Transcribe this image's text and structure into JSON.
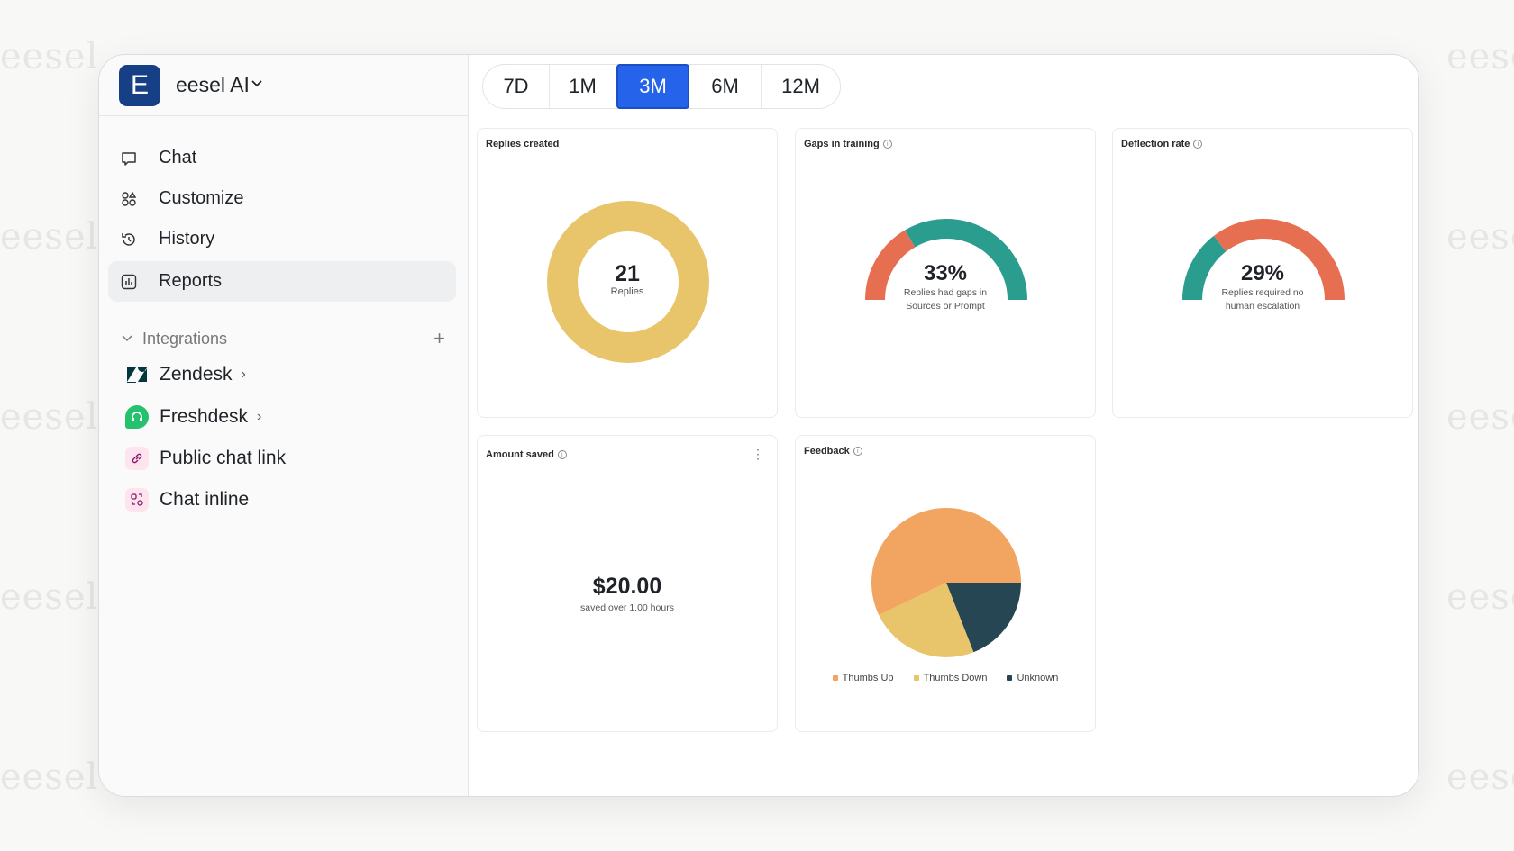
{
  "watermark": "eesel",
  "brand": {
    "logo_letter": "E",
    "name": "eesel AI"
  },
  "nav": [
    {
      "label": "Chat",
      "icon": "chat-bubble-icon"
    },
    {
      "label": "Customize",
      "icon": "shapes-icon"
    },
    {
      "label": "History",
      "icon": "history-icon"
    },
    {
      "label": "Reports",
      "icon": "bar-chart-icon",
      "active": true
    }
  ],
  "integrations": {
    "label": "Integrations",
    "items": [
      {
        "label": "Zendesk",
        "icon": "zendesk-icon",
        "has_chevron": true
      },
      {
        "label": "Freshdesk",
        "icon": "freshdesk-icon",
        "has_chevron": true
      },
      {
        "label": "Public chat link",
        "icon": "link-icon"
      },
      {
        "label": "Chat inline",
        "icon": "chat-inline-icon"
      }
    ]
  },
  "range_tabs": {
    "options": [
      "7D",
      "1M",
      "3M",
      "6M",
      "12M"
    ],
    "selected": "3M"
  },
  "colors": {
    "accent": "#2563eb",
    "yellow": "#e8c56a",
    "teal": "#2a9d8f",
    "coral": "#e76f51",
    "orange": "#f2a461",
    "navy": "#264653"
  },
  "cards": {
    "replies": {
      "title": "Replies created",
      "value": "21",
      "unit": "Replies"
    },
    "gaps": {
      "title": "Gaps in training",
      "value": "33%",
      "percent": 33,
      "caption1": "Replies had gaps in",
      "caption2": "Sources or Prompt"
    },
    "deflection": {
      "title": "Deflection rate",
      "value": "29%",
      "percent": 29,
      "caption1": "Replies required no",
      "caption2": "human escalation"
    },
    "amount": {
      "title": "Amount saved",
      "value": "$20.00",
      "caption": "saved over 1.00 hours"
    },
    "feedback": {
      "title": "Feedback"
    }
  },
  "chart_data": [
    {
      "type": "pie",
      "title": "Replies created",
      "categories": [
        "Replies"
      ],
      "values": [
        21
      ]
    },
    {
      "type": "pie",
      "title": "Feedback",
      "categories": [
        "Thumbs Up",
        "Thumbs Down",
        "Unknown"
      ],
      "values": [
        12,
        5,
        4
      ],
      "colors": [
        "#f2a461",
        "#e8c56a",
        "#264653"
      ],
      "legend": "bottom"
    }
  ]
}
